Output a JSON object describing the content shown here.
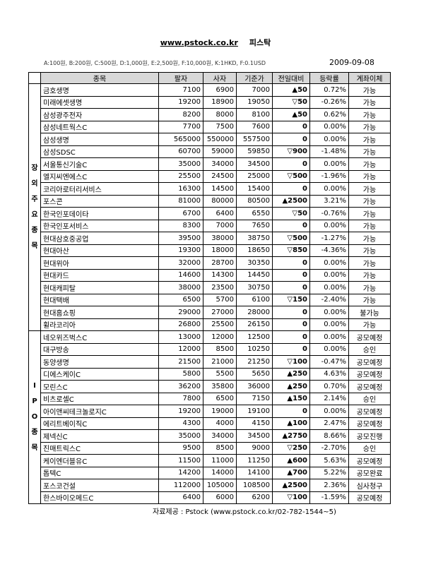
{
  "header": {
    "site": "www.pstock.co.kr",
    "name": "피스탁",
    "legend": "A:100원, B:200원, C:500원, D:1,000원, E:2,500원, F:10,000원, K:1HKD, F:0.1USD",
    "date": "2009-09-08"
  },
  "table": {
    "columns": [
      "종목",
      "팔자",
      "사자",
      "기준가",
      "전일대비",
      "등락률",
      "계좌이체"
    ],
    "groups": [
      {
        "label": "장외주요종목",
        "rows": [
          [
            "금호생명",
            "7100",
            "6900",
            "7000",
            "▲50",
            "0.72%",
            "가능"
          ],
          [
            "미래에셋생명",
            "19200",
            "18900",
            "19050",
            "▽50",
            "-0.26%",
            "가능"
          ],
          [
            "삼성광주전자",
            "8200",
            "8000",
            "8100",
            "▲50",
            "0.62%",
            "가능"
          ],
          [
            "삼성네트웍스C",
            "7700",
            "7500",
            "7600",
            "0",
            "0.00%",
            "가능"
          ],
          [
            "삼성생명",
            "565000",
            "550000",
            "557500",
            "0",
            "0.00%",
            "가능"
          ],
          [
            "삼성SDSC",
            "60700",
            "59000",
            "59850",
            "▽900",
            "-1.48%",
            "가능"
          ],
          [
            "서울통신기술C",
            "35000",
            "34000",
            "34500",
            "0",
            "0.00%",
            "가능"
          ],
          [
            "엘지씨엔에스C",
            "25500",
            "24500",
            "25000",
            "▽500",
            "-1.96%",
            "가능"
          ],
          [
            "코리아로터리서비스",
            "16300",
            "14500",
            "15400",
            "0",
            "0.00%",
            "가능"
          ],
          [
            "포스콘",
            "81000",
            "80000",
            "80500",
            "▲2500",
            "3.21%",
            "가능"
          ],
          [
            "한국인포데이타",
            "6700",
            "6400",
            "6550",
            "▽50",
            "-0.76%",
            "가능"
          ],
          [
            "한국인포서비스",
            "8300",
            "7000",
            "7650",
            "0",
            "0.00%",
            "가능"
          ],
          [
            "현대삼호중공업",
            "39500",
            "38000",
            "38750",
            "▽500",
            "-1.27%",
            "가능"
          ],
          [
            "현대아산",
            "19300",
            "18000",
            "18650",
            "▽850",
            "-4.36%",
            "가능"
          ],
          [
            "현대위아",
            "32000",
            "28700",
            "30350",
            "0",
            "0.00%",
            "가능"
          ],
          [
            "현대카드",
            "14600",
            "14300",
            "14450",
            "0",
            "0.00%",
            "가능"
          ],
          [
            "현대캐피탈",
            "38000",
            "23500",
            "30750",
            "0",
            "0.00%",
            "가능"
          ],
          [
            "현대택배",
            "6500",
            "5700",
            "6100",
            "▽150",
            "-2.40%",
            "가능"
          ],
          [
            "현대홈쇼핑",
            "29000",
            "27000",
            "28000",
            "0",
            "0.00%",
            "불가능"
          ],
          [
            "휠라코리아",
            "26800",
            "25500",
            "26150",
            "0",
            "0.00%",
            "가능"
          ]
        ]
      },
      {
        "label": "IPO종목",
        "rows": [
          [
            "네오위즈벅스C",
            "13000",
            "12000",
            "12500",
            "0",
            "0.00%",
            "공모예정"
          ],
          [
            "대구방송",
            "12000",
            "8500",
            "10250",
            "0",
            "0.00%",
            "승인"
          ],
          [
            "동양생명",
            "21500",
            "21000",
            "21250",
            "▽100",
            "-0.47%",
            "공모예정"
          ],
          [
            "디에스케이C",
            "5800",
            "5500",
            "5650",
            "▲250",
            "4.63%",
            "공모예정"
          ],
          [
            "모린스C",
            "36200",
            "35800",
            "36000",
            "▲250",
            "0.70%",
            "공모예정"
          ],
          [
            "비츠로셀C",
            "7800",
            "6500",
            "7150",
            "▲150",
            "2.14%",
            "승인"
          ],
          [
            "아이앤씨테크놀로지C",
            "19200",
            "19000",
            "19100",
            "0",
            "0.00%",
            "공모예정"
          ],
          [
            "에리트베이직C",
            "4300",
            "4000",
            "4150",
            "▲100",
            "2.47%",
            "공모예정"
          ],
          [
            "제넥신C",
            "35000",
            "34000",
            "34500",
            "▲2750",
            "8.66%",
            "공모진행"
          ],
          [
            "진매트릭스C",
            "9500",
            "8500",
            "9000",
            "▽250",
            "-2.70%",
            "승인"
          ],
          [
            "케이엔더블유C",
            "11500",
            "11000",
            "11250",
            "▲600",
            "5.63%",
            "공모예정"
          ],
          [
            "톱텍C",
            "14200",
            "14000",
            "14100",
            "▲700",
            "5.22%",
            "공모완료"
          ],
          [
            "포스코건설",
            "112000",
            "105000",
            "108500",
            "▲2500",
            "2.36%",
            "심사청구"
          ],
          [
            "한스바이오메드C",
            "6400",
            "6000",
            "6200",
            "▽100",
            "-1.59%",
            "공모예정"
          ]
        ]
      }
    ]
  },
  "footer": {
    "source": "자료제공 : Pstock (www.pstock.co.kr/02-782-1544~5)"
  }
}
